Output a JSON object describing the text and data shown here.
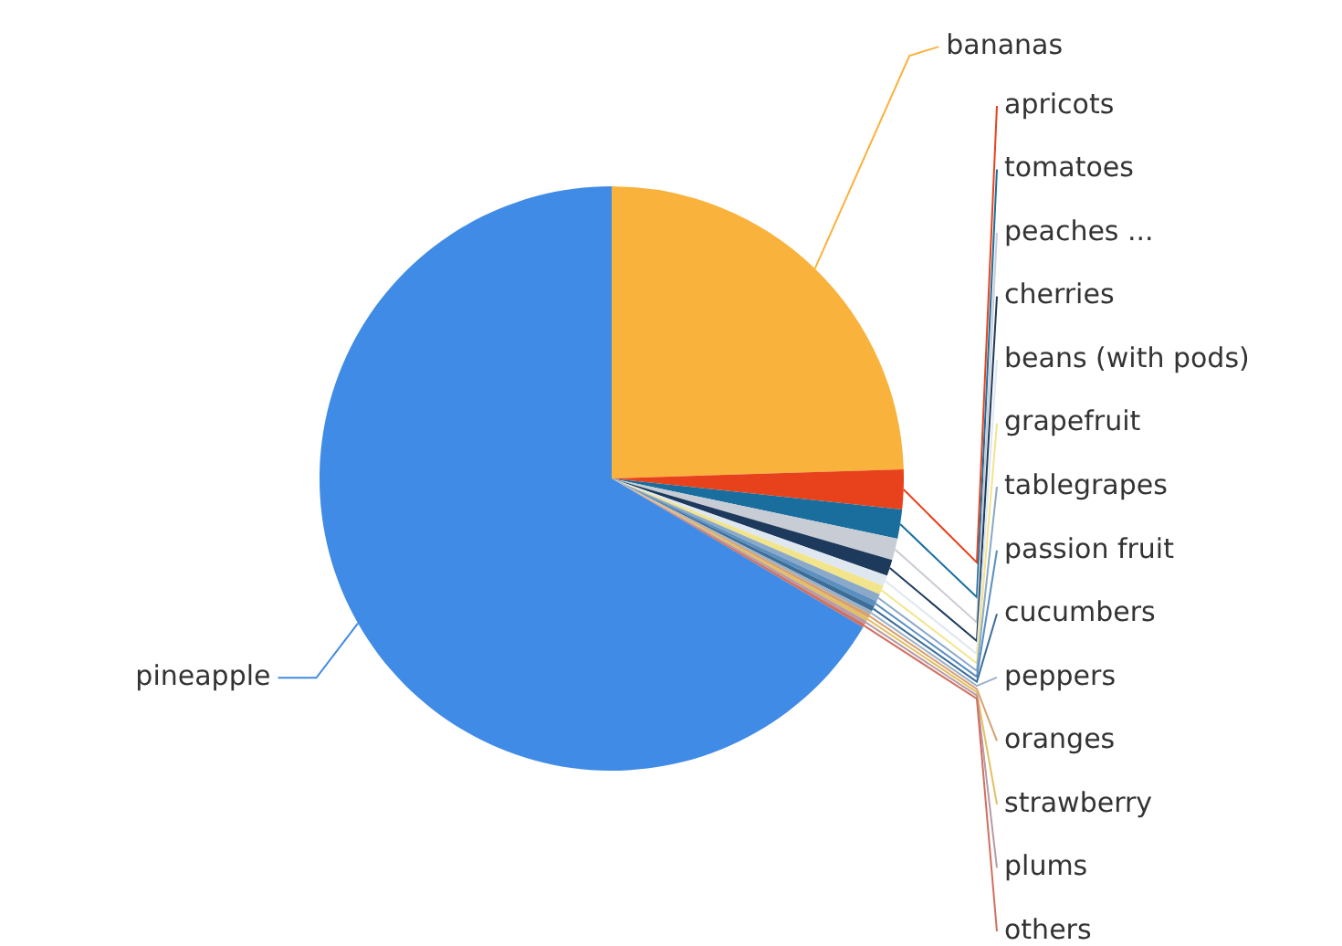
{
  "chart_data": {
    "type": "pie",
    "categories": [
      "bananas",
      "apricots",
      "tomatoes",
      "peaches ...",
      "cherries",
      "beans (with pods)",
      "grapefruit",
      "tablegrapes",
      "passion fruit",
      "cucumbers",
      "peppers",
      "oranges",
      "strawberry",
      "plums",
      "others",
      "pineapple"
    ],
    "values": [
      24.5,
      2.2,
      1.6,
      1.2,
      0.9,
      0.6,
      0.5,
      0.4,
      0.3,
      0.3,
      0.2,
      0.2,
      0.2,
      0.2,
      0.2,
      66.5
    ],
    "colors": [
      "#f9b23c",
      "#e8421c",
      "#1a6e9e",
      "#c8ccd4",
      "#1d3a5c",
      "#dfe7f0",
      "#f2e48a",
      "#8aa8c8",
      "#5a8fc0",
      "#3c6e98",
      "#9ab0c8",
      "#d8a070",
      "#e0c060",
      "#b89aa8",
      "#d07060",
      "#3f8be6"
    ],
    "legend": false
  }
}
